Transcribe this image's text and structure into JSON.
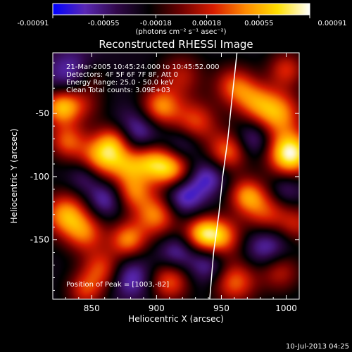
{
  "chart_data": {
    "type": "heatmap",
    "title": "Reconstructed RHESSI Image",
    "xlabel": "Heliocentric X (arcsec)",
    "ylabel": "Heliocentric Y (arcsec)",
    "xlim": [
      820,
      1010
    ],
    "ylim": [
      -197,
      -2
    ],
    "xticks": [
      850,
      900,
      950,
      1000
    ],
    "yticks": [
      -50,
      -100,
      -150
    ],
    "grid": false,
    "colorbar": {
      "position": "top",
      "ticks": [
        "-0.00091",
        "-0.00055",
        "-0.00018",
        "0.00018",
        "0.00055",
        "0.00091"
      ],
      "range": [
        -0.00091,
        0.00091
      ],
      "unit_label": "(photons cm⁻² s⁻¹ asec⁻²)",
      "stops": [
        "#0000ff",
        "#5a28b4",
        "#300848",
        "#000000",
        "#6e0000",
        "#d81c00",
        "#ff8a00",
        "#ffe000",
        "#ffffff"
      ]
    },
    "annotations": [
      "21-Mar-2005 10:45:24.000 to 10:45:52.000",
      "Detectors: 4F 5F 6F 7F 8F, Att 0",
      "Energy Range: 25.0 - 50.0 keV",
      "Clean    Total counts: 3.09E+03"
    ],
    "peak_label": "Position of Peak = [1003,-82]",
    "limb_curve": [
      [
        962,
        -2
      ],
      [
        958,
        -40
      ],
      [
        955,
        -70
      ],
      [
        951,
        -100
      ],
      [
        948,
        -130
      ],
      [
        944,
        -160
      ],
      [
        941,
        -197
      ]
    ],
    "blobs": [
      {
        "x": 835,
        "y": -20,
        "v": -0.55,
        "s": 15
      },
      {
        "x": 826,
        "y": -45,
        "v": 0.95,
        "s": 10
      },
      {
        "x": 842,
        "y": -40,
        "v": 0.55,
        "s": 12
      },
      {
        "x": 831,
        "y": -72,
        "v": 0.7,
        "s": 10
      },
      {
        "x": 857,
        "y": -85,
        "v": 0.95,
        "s": 12
      },
      {
        "x": 868,
        "y": -72,
        "v": 0.75,
        "s": 10
      },
      {
        "x": 877,
        "y": -92,
        "v": 0.6,
        "s": 10
      },
      {
        "x": 895,
        "y": -88,
        "v": 0.85,
        "s": 11
      },
      {
        "x": 912,
        "y": -95,
        "v": 1.0,
        "s": 11
      },
      {
        "x": 903,
        "y": -45,
        "v": 0.9,
        "s": 11
      },
      {
        "x": 930,
        "y": -57,
        "v": 0.7,
        "s": 12
      },
      {
        "x": 919,
        "y": -20,
        "v": 0.5,
        "s": 12
      },
      {
        "x": 960,
        "y": -28,
        "v": 0.7,
        "s": 11
      },
      {
        "x": 975,
        "y": -40,
        "v": 0.6,
        "s": 11
      },
      {
        "x": 993,
        "y": -50,
        "v": 0.95,
        "s": 13
      },
      {
        "x": 1003,
        "y": -82,
        "v": 1.4,
        "s": 12
      },
      {
        "x": 955,
        "y": -80,
        "v": 0.8,
        "s": 11
      },
      {
        "x": 970,
        "y": -115,
        "v": 0.85,
        "s": 10
      },
      {
        "x": 985,
        "y": -130,
        "v": 0.65,
        "s": 12
      },
      {
        "x": 950,
        "y": -148,
        "v": 0.85,
        "s": 11
      },
      {
        "x": 935,
        "y": -145,
        "v": 0.95,
        "s": 10
      },
      {
        "x": 900,
        "y": -130,
        "v": 0.9,
        "s": 12
      },
      {
        "x": 882,
        "y": -112,
        "v": 0.7,
        "s": 10
      },
      {
        "x": 830,
        "y": -130,
        "v": 0.95,
        "s": 12
      },
      {
        "x": 845,
        "y": -145,
        "v": 0.7,
        "s": 11
      },
      {
        "x": 878,
        "y": -150,
        "v": 0.85,
        "s": 10
      },
      {
        "x": 858,
        "y": -173,
        "v": 0.7,
        "s": 11
      },
      {
        "x": 845,
        "y": -190,
        "v": 0.6,
        "s": 10
      },
      {
        "x": 910,
        "y": -183,
        "v": 0.75,
        "s": 11
      },
      {
        "x": 960,
        "y": -183,
        "v": 0.8,
        "s": 12
      },
      {
        "x": 995,
        "y": -175,
        "v": 0.55,
        "s": 11
      },
      {
        "x": 1000,
        "y": -15,
        "v": 0.6,
        "s": 10
      },
      {
        "x": 1008,
        "y": -138,
        "v": 0.5,
        "s": 10
      },
      {
        "x": 850,
        "y": -20,
        "v": 0.35,
        "s": 9
      },
      {
        "x": 885,
        "y": -65,
        "v": -0.6,
        "s": 13
      },
      {
        "x": 920,
        "y": -75,
        "v": -0.4,
        "s": 10
      },
      {
        "x": 920,
        "y": -115,
        "v": -0.7,
        "s": 12
      },
      {
        "x": 860,
        "y": -118,
        "v": -0.5,
        "s": 10
      },
      {
        "x": 940,
        "y": -100,
        "v": -0.5,
        "s": 10
      },
      {
        "x": 975,
        "y": -70,
        "v": -0.5,
        "s": 10
      },
      {
        "x": 985,
        "y": -155,
        "v": -0.55,
        "s": 12
      },
      {
        "x": 940,
        "y": -170,
        "v": -0.5,
        "s": 11
      },
      {
        "x": 880,
        "y": -180,
        "v": -0.55,
        "s": 12
      },
      {
        "x": 915,
        "y": -160,
        "v": -0.45,
        "s": 10
      },
      {
        "x": 1000,
        "y": -110,
        "v": -0.35,
        "s": 9
      },
      {
        "x": 845,
        "y": -100,
        "v": -0.4,
        "s": 9
      }
    ]
  },
  "footer": {
    "date": "10-Jul-2013 04:25"
  }
}
